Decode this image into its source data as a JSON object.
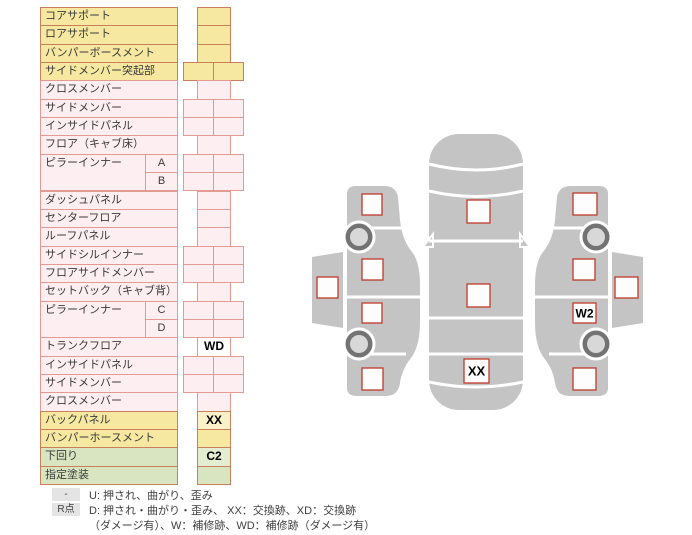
{
  "colors": {
    "row_yellow": "#f6e8a0",
    "row_pink": "#fdeef1",
    "row_green": "#d9e5c1",
    "border_brown": "#c9805a",
    "border_salmon": "#e39a93",
    "damage_box_red": "#c0392b",
    "car_body_gray": "#c4c4c4",
    "wheel_ring_gray": "#737373",
    "wheel_hub_gray": "#d8d8d8"
  },
  "table": {
    "rows": [
      {
        "label": "コアサポート",
        "color": "yellow",
        "cells": "single",
        "mark": ""
      },
      {
        "label": "ロアサポート",
        "color": "yellow",
        "cells": "single",
        "mark": ""
      },
      {
        "label": "バンパーボースメント",
        "color": "yellow",
        "cells": "single",
        "mark": ""
      },
      {
        "label": "サイドメンバー突起部",
        "color": "yellow",
        "cells": "double",
        "mark": ""
      },
      {
        "label": "クロスメンバー",
        "color": "pink",
        "cells": "single",
        "mark": ""
      },
      {
        "label": "サイドメンバー",
        "color": "pink",
        "cells": "double",
        "mark": ""
      },
      {
        "label": "インサイドパネル",
        "color": "pink",
        "cells": "double",
        "mark": ""
      },
      {
        "label": "フロア（キャブ床）",
        "color": "pink",
        "cells": "single",
        "mark": ""
      },
      {
        "label": "ピラーインナー",
        "color": "pink",
        "cells": "double",
        "sub": "A",
        "span": 2,
        "mark": ""
      },
      {
        "label": "",
        "color": "pink",
        "cells": "double",
        "sub": "B",
        "mark": ""
      },
      {
        "label": "ダッシュパネル",
        "color": "pink",
        "cells": "single",
        "mark": ""
      },
      {
        "label": "センターフロア",
        "color": "pink",
        "cells": "single",
        "mark": ""
      },
      {
        "label": "ルーフパネル",
        "color": "pink",
        "cells": "single",
        "mark": ""
      },
      {
        "label": "サイドシルインナー",
        "color": "pink",
        "cells": "double",
        "mark": ""
      },
      {
        "label": "フロアサイドメンバー",
        "color": "pink",
        "cells": "double",
        "mark": ""
      },
      {
        "label": "セットバック（キャブ背）",
        "color": "pink",
        "cells": "single",
        "mark": ""
      },
      {
        "label": "ピラーインナー",
        "color": "pink",
        "cells": "double",
        "sub": "C",
        "span": 2,
        "mark": ""
      },
      {
        "label": "",
        "color": "pink",
        "cells": "double",
        "sub": "D",
        "mark": ""
      },
      {
        "label": "トランクフロア",
        "color": "pink",
        "cells": "single",
        "mark": "WD",
        "mark_bg": "#ffffff"
      },
      {
        "label": "インサイドパネル",
        "color": "pink",
        "cells": "double",
        "mark": ""
      },
      {
        "label": "サイドメンバー",
        "color": "pink",
        "cells": "double",
        "mark": ""
      },
      {
        "label": "クロスメンバー",
        "color": "pink",
        "cells": "single",
        "mark": ""
      },
      {
        "label": "バックパネル",
        "color": "yellow",
        "cells": "single",
        "mark": "XX",
        "mark_bg": "#f9f1c8"
      },
      {
        "label": "バンパーホースメント",
        "color": "yellow",
        "cells": "single",
        "mark": ""
      },
      {
        "label": "下回り",
        "color": "green",
        "cells": "single",
        "mark": "C2",
        "mark_bg": "#e2edd2"
      },
      {
        "label": "指定塗装",
        "color": "green",
        "cells": "single",
        "mark": ""
      }
    ]
  },
  "legend": {
    "rows": [
      {
        "badge": "-",
        "text": "U: 押され、曲がり、歪み"
      },
      {
        "badge": "R点",
        "text": "D: 押され・曲がり・歪み、 XX：交換跡、XD：交換跡"
      },
      {
        "badge": "",
        "text": "（ダメージ有）、W：補修跡、WD：補修跡（ダメージ有）"
      }
    ]
  },
  "diagram": {
    "marks": {
      "top_trunk": "XX",
      "right_rear_door": "W2"
    }
  }
}
